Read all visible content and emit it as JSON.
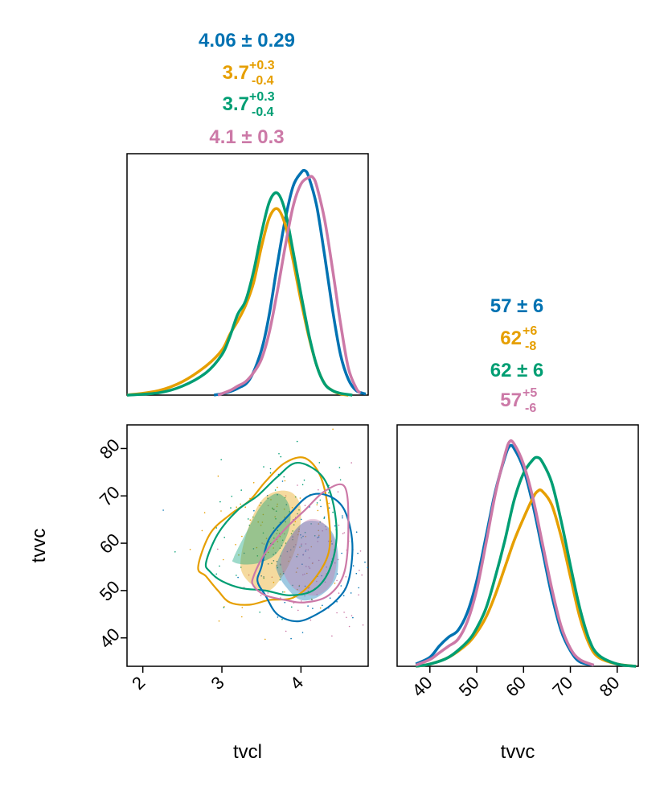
{
  "chart_data": {
    "type": "corner",
    "colors": [
      "#0072B2",
      "#E69F00",
      "#009E73",
      "#CC79A7"
    ],
    "params": [
      "tvcl",
      "tvvc"
    ],
    "axis_labels": {
      "x1": "tvcl",
      "x2": "tvvc",
      "y_scatter": "tvvc"
    },
    "panels": {
      "tvcl_marginal": {
        "type": "line",
        "xlim": [
          1.8,
          4.85
        ],
        "ylim": [
          0,
          1.0
        ],
        "series": [
          {
            "color": "#0072B2",
            "x": [
              2.9,
              3.05,
              3.2,
              3.35,
              3.5,
              3.6,
              3.7,
              3.8,
              3.9,
              4.0,
              4.05,
              4.1,
              4.2,
              4.3,
              4.4,
              4.5,
              4.6,
              4.7,
              4.82
            ],
            "y": [
              0,
              0.01,
              0.03,
              0.07,
              0.2,
              0.36,
              0.58,
              0.78,
              0.93,
              0.99,
              1.0,
              0.97,
              0.84,
              0.62,
              0.38,
              0.18,
              0.07,
              0.02,
              0.005
            ]
          },
          {
            "color": "#E69F00",
            "x": [
              1.8,
              2.2,
              2.5,
              2.8,
              3.0,
              3.1,
              3.2,
              3.3,
              3.4,
              3.5,
              3.6,
              3.7,
              3.8,
              3.9,
              4.0,
              4.1,
              4.2,
              4.3,
              4.4,
              4.5,
              4.6
            ],
            "y": [
              0,
              0.02,
              0.06,
              0.13,
              0.2,
              0.27,
              0.33,
              0.4,
              0.5,
              0.66,
              0.79,
              0.83,
              0.76,
              0.6,
              0.42,
              0.26,
              0.13,
              0.05,
              0.02,
              0.005,
              0
            ]
          },
          {
            "color": "#009E73",
            "x": [
              1.8,
              2.2,
              2.5,
              2.8,
              3.0,
              3.1,
              3.2,
              3.3,
              3.4,
              3.5,
              3.6,
              3.7,
              3.8,
              3.9,
              4.0,
              4.1,
              4.2,
              4.3,
              4.4,
              4.5,
              4.65
            ],
            "y": [
              0,
              0.01,
              0.04,
              0.1,
              0.18,
              0.26,
              0.36,
              0.42,
              0.55,
              0.72,
              0.86,
              0.9,
              0.82,
              0.64,
              0.45,
              0.27,
              0.13,
              0.05,
              0.02,
              0.008,
              0
            ]
          },
          {
            "color": "#CC79A7",
            "x": [
              2.95,
              3.1,
              3.2,
              3.3,
              3.4,
              3.5,
              3.6,
              3.7,
              3.8,
              3.9,
              4.0,
              4.1,
              4.15,
              4.2,
              4.3,
              4.4,
              4.5,
              4.6,
              4.7,
              4.75
            ],
            "y": [
              0,
              0.02,
              0.04,
              0.06,
              0.1,
              0.16,
              0.28,
              0.46,
              0.66,
              0.84,
              0.94,
              0.97,
              0.97,
              0.93,
              0.78,
              0.56,
              0.32,
              0.12,
              0.03,
              0.01
            ]
          }
        ]
      },
      "tvvc_marginal": {
        "type": "line",
        "xlim": [
          33,
          84.5
        ],
        "ylim": [
          0,
          1.0
        ],
        "series": [
          {
            "color": "#0072B2",
            "x": [
              37,
              40,
              42,
              44,
              46,
              48,
              50,
              52,
              54,
              56,
              57,
              58,
              60,
              62,
              64,
              66,
              68,
              70,
              72,
              75
            ],
            "y": [
              0.01,
              0.04,
              0.09,
              0.13,
              0.16,
              0.24,
              0.38,
              0.58,
              0.78,
              0.93,
              0.98,
              0.97,
              0.88,
              0.72,
              0.52,
              0.32,
              0.16,
              0.07,
              0.02,
              0.005
            ]
          },
          {
            "color": "#E69F00",
            "x": [
              37,
              40,
              44,
              48,
              50,
              52,
              54,
              56,
              58,
              60,
              62,
              63,
              64,
              66,
              68,
              70,
              72,
              74,
              76,
              80,
              84
            ],
            "y": [
              0,
              0.01,
              0.04,
              0.1,
              0.15,
              0.22,
              0.32,
              0.44,
              0.56,
              0.66,
              0.75,
              0.78,
              0.78,
              0.72,
              0.58,
              0.4,
              0.22,
              0.1,
              0.04,
              0.01,
              0
            ]
          },
          {
            "color": "#009E73",
            "x": [
              37,
              40,
              44,
              48,
              50,
              52,
              54,
              56,
              58,
              60,
              62,
              63,
              64,
              66,
              68,
              70,
              72,
              74,
              76,
              80,
              84
            ],
            "y": [
              0,
              0.01,
              0.04,
              0.11,
              0.17,
              0.26,
              0.4,
              0.56,
              0.74,
              0.86,
              0.92,
              0.93,
              0.91,
              0.82,
              0.65,
              0.45,
              0.26,
              0.12,
              0.05,
              0.01,
              0
            ]
          },
          {
            "color": "#CC79A7",
            "x": [
              37,
              40,
              42,
              44,
              46,
              48,
              50,
              52,
              54,
              56,
              57,
              58,
              60,
              62,
              64,
              66,
              68,
              70,
              72,
              75
            ],
            "y": [
              0.005,
              0.03,
              0.06,
              0.09,
              0.12,
              0.2,
              0.34,
              0.55,
              0.77,
              0.94,
              1.0,
              0.99,
              0.9,
              0.75,
              0.55,
              0.35,
              0.18,
              0.08,
              0.03,
              0.005
            ]
          }
        ]
      },
      "joint": {
        "type": "contour_scatter",
        "xlim": [
          1.8,
          4.85
        ],
        "ylim": [
          34,
          85
        ],
        "filled_regions": [
          {
            "color": "#E69F00",
            "points": [
              [
                3.25,
                58
              ],
              [
                3.35,
                64
              ],
              [
                3.5,
                69
              ],
              [
                3.7,
                71
              ],
              [
                3.9,
                70.5
              ],
              [
                4.0,
                67
              ],
              [
                3.95,
                60
              ],
              [
                3.8,
                54
              ],
              [
                3.6,
                50
              ],
              [
                3.4,
                51
              ],
              [
                3.25,
                54
              ]
            ]
          },
          {
            "color": "#009E73",
            "points": [
              [
                3.15,
                57
              ],
              [
                3.3,
                62
              ],
              [
                3.5,
                68
              ],
              [
                3.7,
                70.5
              ],
              [
                3.85,
                68
              ],
              [
                3.85,
                63
              ],
              [
                3.7,
                58
              ],
              [
                3.5,
                56
              ],
              [
                3.3,
                55.5
              ],
              [
                3.15,
                56
              ]
            ]
          },
          {
            "color": "#0072B2",
            "points": [
              [
                3.7,
                56
              ],
              [
                3.85,
                61
              ],
              [
                4.05,
                64.5
              ],
              [
                4.3,
                64
              ],
              [
                4.45,
                60
              ],
              [
                4.45,
                53
              ],
              [
                4.25,
                49
              ],
              [
                4.0,
                48
              ],
              [
                3.8,
                51
              ],
              [
                3.7,
                54
              ]
            ]
          },
          {
            "color": "#CC79A7",
            "points": [
              [
                3.75,
                57
              ],
              [
                3.9,
                62
              ],
              [
                4.1,
                65
              ],
              [
                4.3,
                64
              ],
              [
                4.45,
                59
              ],
              [
                4.4,
                52
              ],
              [
                4.2,
                49
              ],
              [
                3.95,
                50
              ],
              [
                3.8,
                53
              ]
            ]
          }
        ],
        "contours": [
          {
            "color": "#E69F00",
            "points": [
              [
                2.7,
                55
              ],
              [
                2.85,
                62
              ],
              [
                3.1,
                66
              ],
              [
                3.35,
                69
              ],
              [
                3.55,
                73
              ],
              [
                3.8,
                77
              ],
              [
                4.05,
                78
              ],
              [
                4.25,
                74
              ],
              [
                4.35,
                66
              ],
              [
                4.35,
                58
              ],
              [
                4.15,
                52
              ],
              [
                3.9,
                48.5
              ],
              [
                3.6,
                48
              ],
              [
                3.35,
                47
              ],
              [
                3.1,
                47.5
              ],
              [
                2.95,
                50
              ],
              [
                2.8,
                53
              ]
            ]
          },
          {
            "color": "#009E73",
            "points": [
              [
                2.8,
                56
              ],
              [
                2.95,
                62
              ],
              [
                3.2,
                67
              ],
              [
                3.45,
                70
              ],
              [
                3.7,
                74
              ],
              [
                3.95,
                77
              ],
              [
                4.25,
                74.5
              ],
              [
                4.4,
                69
              ],
              [
                4.45,
                61
              ],
              [
                4.35,
                54
              ],
              [
                4.15,
                50
              ],
              [
                3.85,
                49
              ],
              [
                3.55,
                50
              ],
              [
                3.25,
                50.5
              ],
              [
                3.0,
                52
              ],
              [
                2.85,
                54
              ]
            ]
          },
          {
            "color": "#0072B2",
            "points": [
              [
                3.5,
                55
              ],
              [
                3.6,
                61
              ],
              [
                3.85,
                66
              ],
              [
                4.1,
                70
              ],
              [
                4.35,
                70
              ],
              [
                4.55,
                67
              ],
              [
                4.65,
                60
              ],
              [
                4.6,
                52
              ],
              [
                4.45,
                48
              ],
              [
                4.2,
                45
              ],
              [
                3.95,
                43.5
              ],
              [
                3.7,
                45
              ],
              [
                3.55,
                49
              ],
              [
                3.45,
                52
              ]
            ]
          },
          {
            "color": "#CC79A7",
            "points": [
              [
                3.4,
                53
              ],
              [
                3.55,
                58
              ],
              [
                3.8,
                63
              ],
              [
                4.05,
                67
              ],
              [
                4.3,
                71
              ],
              [
                4.55,
                72
              ],
              [
                4.6,
                64
              ],
              [
                4.55,
                54
              ],
              [
                4.35,
                49
              ],
              [
                4.05,
                47.5
              ],
              [
                3.8,
                48
              ],
              [
                3.55,
                49
              ],
              [
                3.4,
                51
              ]
            ]
          }
        ]
      }
    },
    "tick_labels": {
      "tvcl_x": [
        "2",
        "3",
        "4"
      ],
      "tvvc_x": [
        "40",
        "50",
        "60",
        "70",
        "80"
      ],
      "tvvc_y": [
        "40",
        "50",
        "60",
        "70",
        "80"
      ]
    },
    "stats": {
      "tvcl": [
        {
          "color": "#0072B2",
          "main": "4.06 ± 0.29",
          "sup": "",
          "sub": ""
        },
        {
          "color": "#E69F00",
          "main": "3.7",
          "sup": "+0.3",
          "sub": "-0.4"
        },
        {
          "color": "#009E73",
          "main": "3.7",
          "sup": "+0.3",
          "sub": "-0.4"
        },
        {
          "color": "#CC79A7",
          "main": "4.1 ± 0.3",
          "sup": "",
          "sub": ""
        }
      ],
      "tvvc": [
        {
          "color": "#0072B2",
          "main": "57 ± 6",
          "sup": "",
          "sub": ""
        },
        {
          "color": "#E69F00",
          "main": "62",
          "sup": "+6",
          "sub": "-8"
        },
        {
          "color": "#009E73",
          "main": "62 ± 6",
          "sup": "",
          "sub": ""
        },
        {
          "color": "#CC79A7",
          "main": "57",
          "sup": "+5",
          "sub": "-6"
        }
      ]
    }
  }
}
